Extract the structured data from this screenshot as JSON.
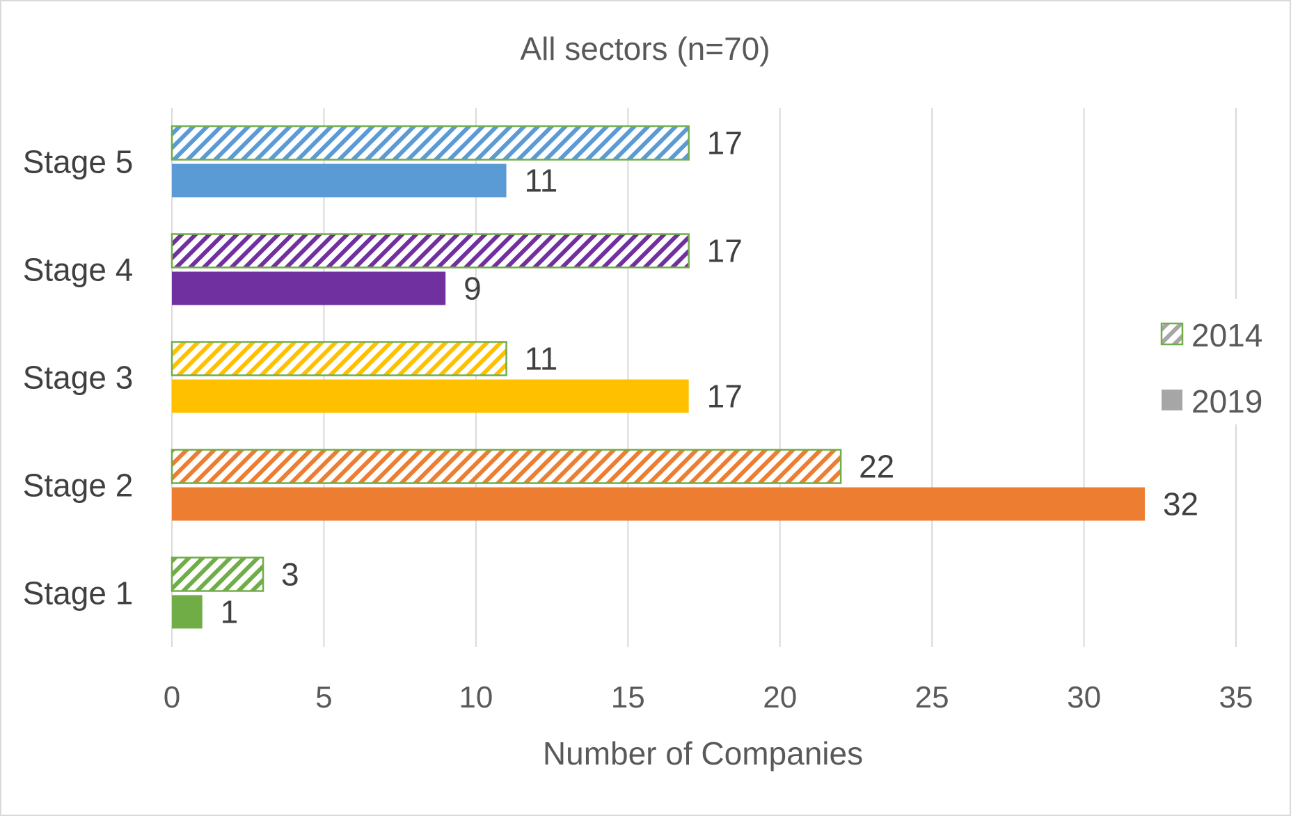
{
  "chart_data": {
    "type": "bar",
    "orientation": "horizontal",
    "title": "All sectors (n=70)",
    "xlabel": "Number of Companies",
    "ylabel": "",
    "xlim": [
      0,
      35
    ],
    "x_ticks": [
      0,
      5,
      10,
      15,
      20,
      25,
      30,
      35
    ],
    "grid": true,
    "legend_position": "right",
    "categories": [
      "Stage 5",
      "Stage 4",
      "Stage 3",
      "Stage 2",
      "Stage 1"
    ],
    "category_colors": [
      "#5b9bd5",
      "#7030a0",
      "#ffc000",
      "#ed7d31",
      "#70ad47"
    ],
    "series": [
      {
        "name": "2014",
        "pattern": "hatched",
        "border_color": "#70ad47",
        "values": [
          17,
          17,
          11,
          22,
          3
        ]
      },
      {
        "name": "2019",
        "pattern": "solid",
        "values": [
          11,
          9,
          17,
          32,
          1
        ]
      }
    ],
    "legend": [
      {
        "label": "2014",
        "swatch": "hatched",
        "color": "#a6a6a6",
        "border_color": "#70ad47"
      },
      {
        "label": "2019",
        "swatch": "solid",
        "color": "#a6a6a6"
      }
    ]
  }
}
